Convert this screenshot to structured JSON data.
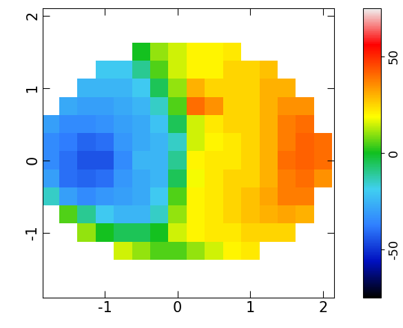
{
  "chart_data": {
    "type": "heatmap",
    "x": [
      -1.75,
      -1.5,
      -1.25,
      -1.0,
      -0.75,
      -0.5,
      -0.25,
      0.0,
      0.25,
      0.5,
      0.75,
      1.0,
      1.25,
      1.5,
      1.75,
      2.0
    ],
    "y": [
      -1.25,
      -1.0,
      -0.75,
      -0.5,
      -0.25,
      0.0,
      0.25,
      0.5,
      0.75,
      1.0,
      1.25,
      1.5
    ],
    "values": [
      [
        null,
        null,
        null,
        null,
        15,
        10,
        5,
        5,
        10,
        15,
        20,
        22,
        null,
        null,
        null,
        null
      ],
      [
        null,
        null,
        10,
        0,
        -5,
        -5,
        0,
        15,
        20,
        22,
        22,
        25,
        25,
        25,
        null,
        null
      ],
      [
        null,
        5,
        -10,
        -20,
        -25,
        -25,
        -15,
        10,
        20,
        22,
        25,
        28,
        30,
        32,
        30,
        null
      ],
      [
        -15,
        -30,
        -35,
        -32,
        -30,
        -28,
        -20,
        5,
        20,
        22,
        25,
        28,
        32,
        38,
        38,
        null
      ],
      [
        -30,
        -40,
        -42,
        -40,
        -32,
        -28,
        -25,
        -5,
        18,
        22,
        25,
        25,
        30,
        38,
        40,
        35
      ],
      [
        -35,
        -40,
        -45,
        -45,
        -35,
        -25,
        -25,
        -10,
        20,
        22,
        22,
        25,
        30,
        40,
        42,
        40
      ],
      [
        -35,
        -38,
        -42,
        -40,
        -32,
        -28,
        -25,
        -15,
        15,
        20,
        22,
        25,
        30,
        38,
        42,
        40
      ],
      [
        -30,
        -35,
        -35,
        -33,
        -30,
        -28,
        -22,
        -5,
        15,
        22,
        25,
        25,
        30,
        38,
        40,
        null
      ],
      [
        null,
        -28,
        -30,
        -30,
        -28,
        -25,
        -15,
        5,
        40,
        35,
        25,
        25,
        30,
        35,
        35,
        null
      ],
      [
        null,
        null,
        -25,
        -25,
        -25,
        -20,
        -5,
        10,
        30,
        25,
        25,
        25,
        30,
        30,
        null,
        null
      ],
      [
        null,
        null,
        null,
        -20,
        -20,
        -10,
        5,
        15,
        20,
        20,
        25,
        25,
        28,
        null,
        null,
        null
      ],
      [
        null,
        null,
        null,
        null,
        null,
        0,
        10,
        15,
        20,
        20,
        22,
        null,
        null,
        null,
        null,
        null
      ]
    ],
    "xlim": [
      -1.85,
      2.15
    ],
    "ylim": [
      -1.9,
      2.1
    ],
    "xticks": [
      -1,
      0,
      1,
      2
    ],
    "yticks": [
      -1,
      0,
      1,
      2
    ],
    "colorbar_range": [
      -75,
      75
    ],
    "colorbar_ticks": [
      -50,
      0,
      50
    ]
  }
}
